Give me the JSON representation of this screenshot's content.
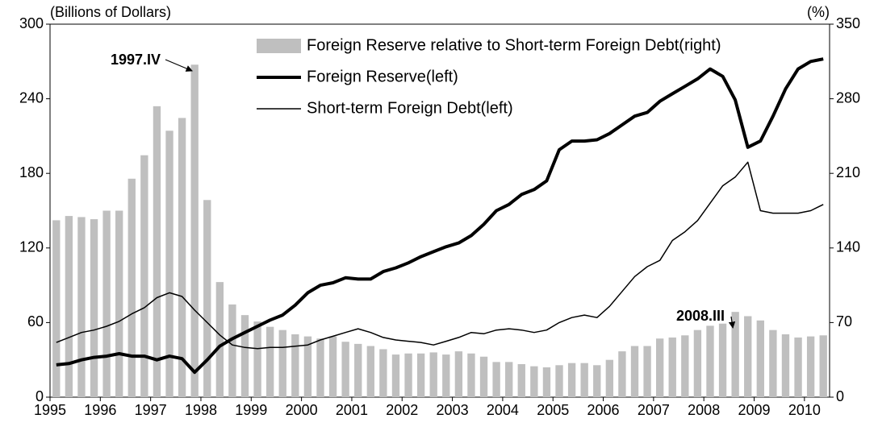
{
  "chart_data": {
    "type": "bar",
    "y_label": "(Billions of Dollars)",
    "y2_label": "(%)",
    "categories": [
      "1995",
      null,
      null,
      null,
      "1996",
      null,
      null,
      null,
      "1997",
      null,
      null,
      null,
      "1998",
      null,
      null,
      null,
      "1999",
      null,
      null,
      null,
      "2000",
      null,
      null,
      null,
      "2001",
      null,
      null,
      null,
      "2002",
      null,
      null,
      null,
      "2003",
      null,
      null,
      null,
      "2004",
      null,
      null,
      null,
      "2005",
      null,
      null,
      null,
      "2006",
      null,
      null,
      null,
      "2007",
      null,
      null,
      null,
      "2008",
      null,
      null,
      null,
      "2009",
      null,
      null,
      null,
      "2010",
      null
    ],
    "series": [
      {
        "name": "Foreign Reserve  relative to Short-term Foreign Debt(right)",
        "type": "bar",
        "axis": "y2",
        "color": "#bfbfbf",
        "values": [
          166,
          170,
          169,
          167,
          175,
          175,
          205,
          227,
          273,
          250,
          262,
          312,
          185,
          108,
          87,
          77,
          71,
          66,
          63,
          59,
          57,
          55,
          57,
          52,
          50,
          48,
          45,
          40,
          41,
          41,
          42,
          40,
          43,
          41,
          38,
          33,
          33,
          31,
          29,
          28,
          30,
          32,
          32,
          30,
          35,
          43,
          48,
          48,
          55,
          56,
          58,
          63,
          67,
          69,
          80,
          76,
          72,
          63,
          59,
          56,
          57,
          58
        ]
      },
      {
        "name": "Foreign Reserve(left)",
        "type": "line",
        "color": "#000000",
        "width": 4,
        "values": [
          26,
          27,
          30,
          32,
          33,
          35,
          33,
          33,
          30,
          33,
          31,
          20,
          30,
          41,
          47,
          52,
          57,
          62,
          66,
          74,
          84,
          90,
          92,
          96,
          95,
          95,
          101,
          104,
          108,
          113,
          117,
          121,
          124,
          130,
          139,
          150,
          155,
          163,
          167,
          174,
          199,
          206,
          206,
          207,
          212,
          219,
          226,
          229,
          238,
          244,
          250,
          256,
          264,
          258,
          239,
          201,
          206,
          226,
          248,
          264,
          270,
          272
        ]
      },
      {
        "name": "Short-term Foreign Debt(left)",
        "type": "line",
        "color": "#000000",
        "width": 1.5,
        "values": [
          44,
          48,
          52,
          54,
          57,
          61,
          67,
          72,
          80,
          84,
          81,
          70,
          60,
          50,
          42,
          40,
          39,
          40,
          40,
          41,
          42,
          46,
          49,
          52,
          55,
          52,
          48,
          46,
          45,
          44,
          42,
          45,
          48,
          52,
          51,
          54,
          55,
          54,
          52,
          54,
          60,
          64,
          66,
          64,
          73,
          85,
          97,
          105,
          110,
          126,
          133,
          142,
          156,
          170,
          177,
          189,
          150,
          148,
          148,
          148,
          150,
          155
        ]
      }
    ],
    "ylim": [
      0,
      300
    ],
    "yticks": [
      0,
      60,
      120,
      180,
      240,
      300
    ],
    "y2lim": [
      0,
      350
    ],
    "y2ticks": [
      0,
      70,
      140,
      210,
      280,
      350
    ],
    "annotations": [
      "1997.IV",
      "2008.III"
    ],
    "legend": "top-right",
    "grid": false
  }
}
